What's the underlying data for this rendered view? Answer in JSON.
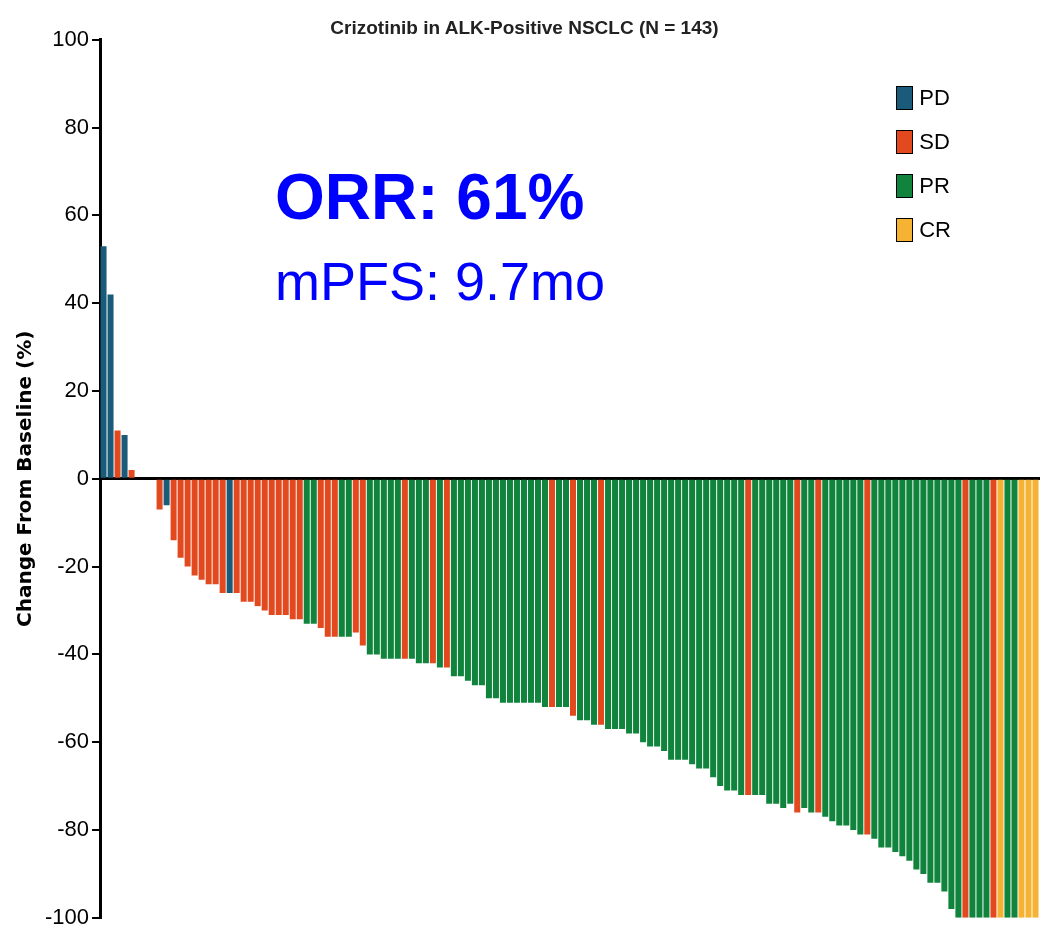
{
  "chart_data": {
    "type": "bar",
    "title": "Crizotinib in ALK-Positive NSCLC (N = 143)",
    "ylabel": "Change From Baseline (%)",
    "categories": [
      null,
      null,
      null,
      null,
      null,
      null,
      null,
      null,
      null,
      null,
      null,
      null,
      null,
      null,
      null,
      null,
      null,
      null,
      null,
      null,
      null,
      null,
      null,
      null,
      null,
      null,
      null,
      null,
      null,
      null,
      null,
      null,
      null,
      null,
      null,
      null,
      null,
      null,
      null,
      null,
      null,
      null,
      null,
      null,
      null,
      null,
      null,
      null,
      null,
      null,
      null,
      null,
      null,
      null,
      null,
      null,
      null,
      null,
      null,
      null,
      null,
      null,
      null,
      null,
      null,
      null,
      null,
      null,
      null,
      null,
      null,
      null,
      null,
      null,
      null,
      null,
      null,
      null,
      null,
      null,
      null,
      null,
      null,
      null,
      null,
      null,
      null,
      null,
      null,
      null,
      null,
      null,
      null,
      null,
      null,
      null,
      null,
      null,
      null,
      null,
      null,
      null,
      null,
      null,
      null,
      null,
      null,
      null,
      null,
      null,
      null,
      null,
      null,
      null,
      null,
      null,
      null,
      null,
      null,
      null,
      null,
      null,
      null,
      null,
      null,
      null,
      null,
      null,
      null,
      null,
      null,
      null,
      null,
      null
    ],
    "series": [
      {
        "name": "PD",
        "color": "#1b5b7a",
        "values": [
          53,
          42,
          null,
          10,
          null,
          null,
          null,
          null,
          null,
          -6,
          null,
          null,
          null,
          null,
          null,
          null,
          null,
          null,
          -26,
          null,
          null,
          null,
          null,
          null,
          null,
          null,
          null,
          null,
          null,
          null,
          null,
          null,
          null,
          null,
          null,
          null,
          null,
          null,
          null,
          null,
          null,
          null,
          null,
          null,
          null,
          null,
          null,
          null,
          null,
          null,
          null,
          null,
          null,
          null,
          null,
          null,
          null,
          null,
          null,
          null,
          null,
          null,
          null,
          null,
          null,
          null,
          null,
          null,
          null,
          null,
          null,
          null,
          null,
          null,
          null,
          null,
          null,
          null,
          null,
          null,
          null,
          null,
          null,
          null,
          null,
          null,
          null,
          null,
          null,
          null,
          null,
          null,
          null,
          null,
          null,
          null,
          null,
          null,
          null,
          null,
          null,
          null,
          null,
          null,
          null,
          null,
          null,
          null,
          null,
          null,
          null,
          null,
          null,
          null,
          null,
          null,
          null,
          null,
          null,
          null,
          null,
          null,
          null,
          null,
          null,
          null,
          null,
          null,
          null,
          null,
          null,
          null,
          null,
          null
        ]
      },
      {
        "name": "SD",
        "color": "#e2491f",
        "values": [
          null,
          null,
          11,
          null,
          2,
          0,
          0,
          0,
          -7,
          null,
          -14,
          -18,
          -20,
          -22,
          -23,
          -24,
          -24,
          -26,
          null,
          -26,
          -28,
          -28,
          -29,
          -30,
          -31,
          -31,
          -31,
          -32,
          -32,
          null,
          null,
          -34,
          -36,
          -36,
          null,
          null,
          -35,
          -38,
          null,
          null,
          null,
          null,
          null,
          -41,
          null,
          null,
          null,
          -42,
          null,
          -43,
          null,
          null,
          null,
          null,
          null,
          null,
          null,
          null,
          null,
          null,
          null,
          null,
          null,
          null,
          -52,
          null,
          null,
          -54,
          null,
          null,
          null,
          -56,
          null,
          null,
          null,
          null,
          null,
          null,
          null,
          null,
          null,
          null,
          null,
          null,
          null,
          null,
          null,
          null,
          null,
          null,
          null,
          null,
          -72,
          null,
          null,
          null,
          null,
          null,
          null,
          -76,
          null,
          null,
          -76,
          null,
          null,
          null,
          null,
          null,
          null,
          -81,
          null,
          null,
          null,
          null,
          null,
          null,
          null,
          null,
          null,
          null,
          null,
          null,
          null,
          -100,
          null,
          null,
          null,
          -100,
          null,
          null,
          null,
          null,
          null,
          null
        ]
      },
      {
        "name": "PR",
        "color": "#10843c",
        "values": [
          null,
          null,
          null,
          null,
          null,
          null,
          null,
          null,
          null,
          null,
          null,
          null,
          null,
          null,
          null,
          null,
          null,
          null,
          null,
          null,
          null,
          null,
          null,
          null,
          null,
          null,
          null,
          null,
          null,
          -33,
          -33,
          null,
          null,
          null,
          -36,
          -36,
          null,
          null,
          -40,
          -40,
          -41,
          -41,
          -41,
          null,
          -41,
          -42,
          -42,
          null,
          -43,
          null,
          -45,
          -45,
          -46,
          -47,
          -47,
          -50,
          -50,
          -51,
          -51,
          -51,
          -51,
          -51,
          -51,
          -52,
          null,
          -52,
          -52,
          null,
          -55,
          -55,
          -56,
          null,
          -57,
          -57,
          -57,
          -58,
          -58,
          -60,
          -61,
          -61,
          -62,
          -64,
          -64,
          -64,
          -65,
          -66,
          -66,
          -68,
          -70,
          -71,
          -71,
          -72,
          null,
          -72,
          -72,
          -74,
          -74,
          -75,
          -74,
          null,
          -75,
          -76,
          null,
          -77,
          -78,
          -79,
          -79,
          -80,
          -81,
          null,
          -82,
          -84,
          -84,
          -85,
          -86,
          -87,
          -89,
          -90,
          -92,
          -92,
          -94,
          -98,
          -100,
          null,
          -100,
          -100,
          -100,
          null,
          null,
          -100,
          -100,
          null,
          null,
          null
        ]
      },
      {
        "name": "CR",
        "color": "#f6b233",
        "values": [
          null,
          null,
          null,
          null,
          null,
          null,
          null,
          null,
          null,
          null,
          null,
          null,
          null,
          null,
          null,
          null,
          null,
          null,
          null,
          null,
          null,
          null,
          null,
          null,
          null,
          null,
          null,
          null,
          null,
          null,
          null,
          null,
          null,
          null,
          null,
          null,
          null,
          null,
          null,
          null,
          null,
          null,
          null,
          null,
          null,
          null,
          null,
          null,
          null,
          null,
          null,
          null,
          null,
          null,
          null,
          null,
          null,
          null,
          null,
          null,
          null,
          null,
          null,
          null,
          null,
          null,
          null,
          null,
          null,
          null,
          null,
          null,
          null,
          null,
          null,
          null,
          null,
          null,
          null,
          null,
          null,
          null,
          null,
          null,
          null,
          null,
          null,
          null,
          null,
          null,
          null,
          null,
          null,
          null,
          null,
          null,
          null,
          null,
          null,
          null,
          null,
          null,
          null,
          null,
          null,
          null,
          null,
          null,
          null,
          null,
          null,
          null,
          null,
          null,
          null,
          null,
          null,
          null,
          null,
          null,
          null,
          null,
          null,
          null,
          null,
          null,
          null,
          null,
          -100,
          null,
          null,
          -100,
          -100,
          -100
        ]
      }
    ],
    "ylim": [
      -100,
      100
    ],
    "yticks": [
      -100,
      -80,
      -60,
      -40,
      -20,
      0,
      20,
      40,
      60,
      80,
      100
    ],
    "tick_labels": "y",
    "legend": "top right",
    "annotations": [
      "ORR: 61%",
      "mPFS: 9.7mo"
    ]
  }
}
